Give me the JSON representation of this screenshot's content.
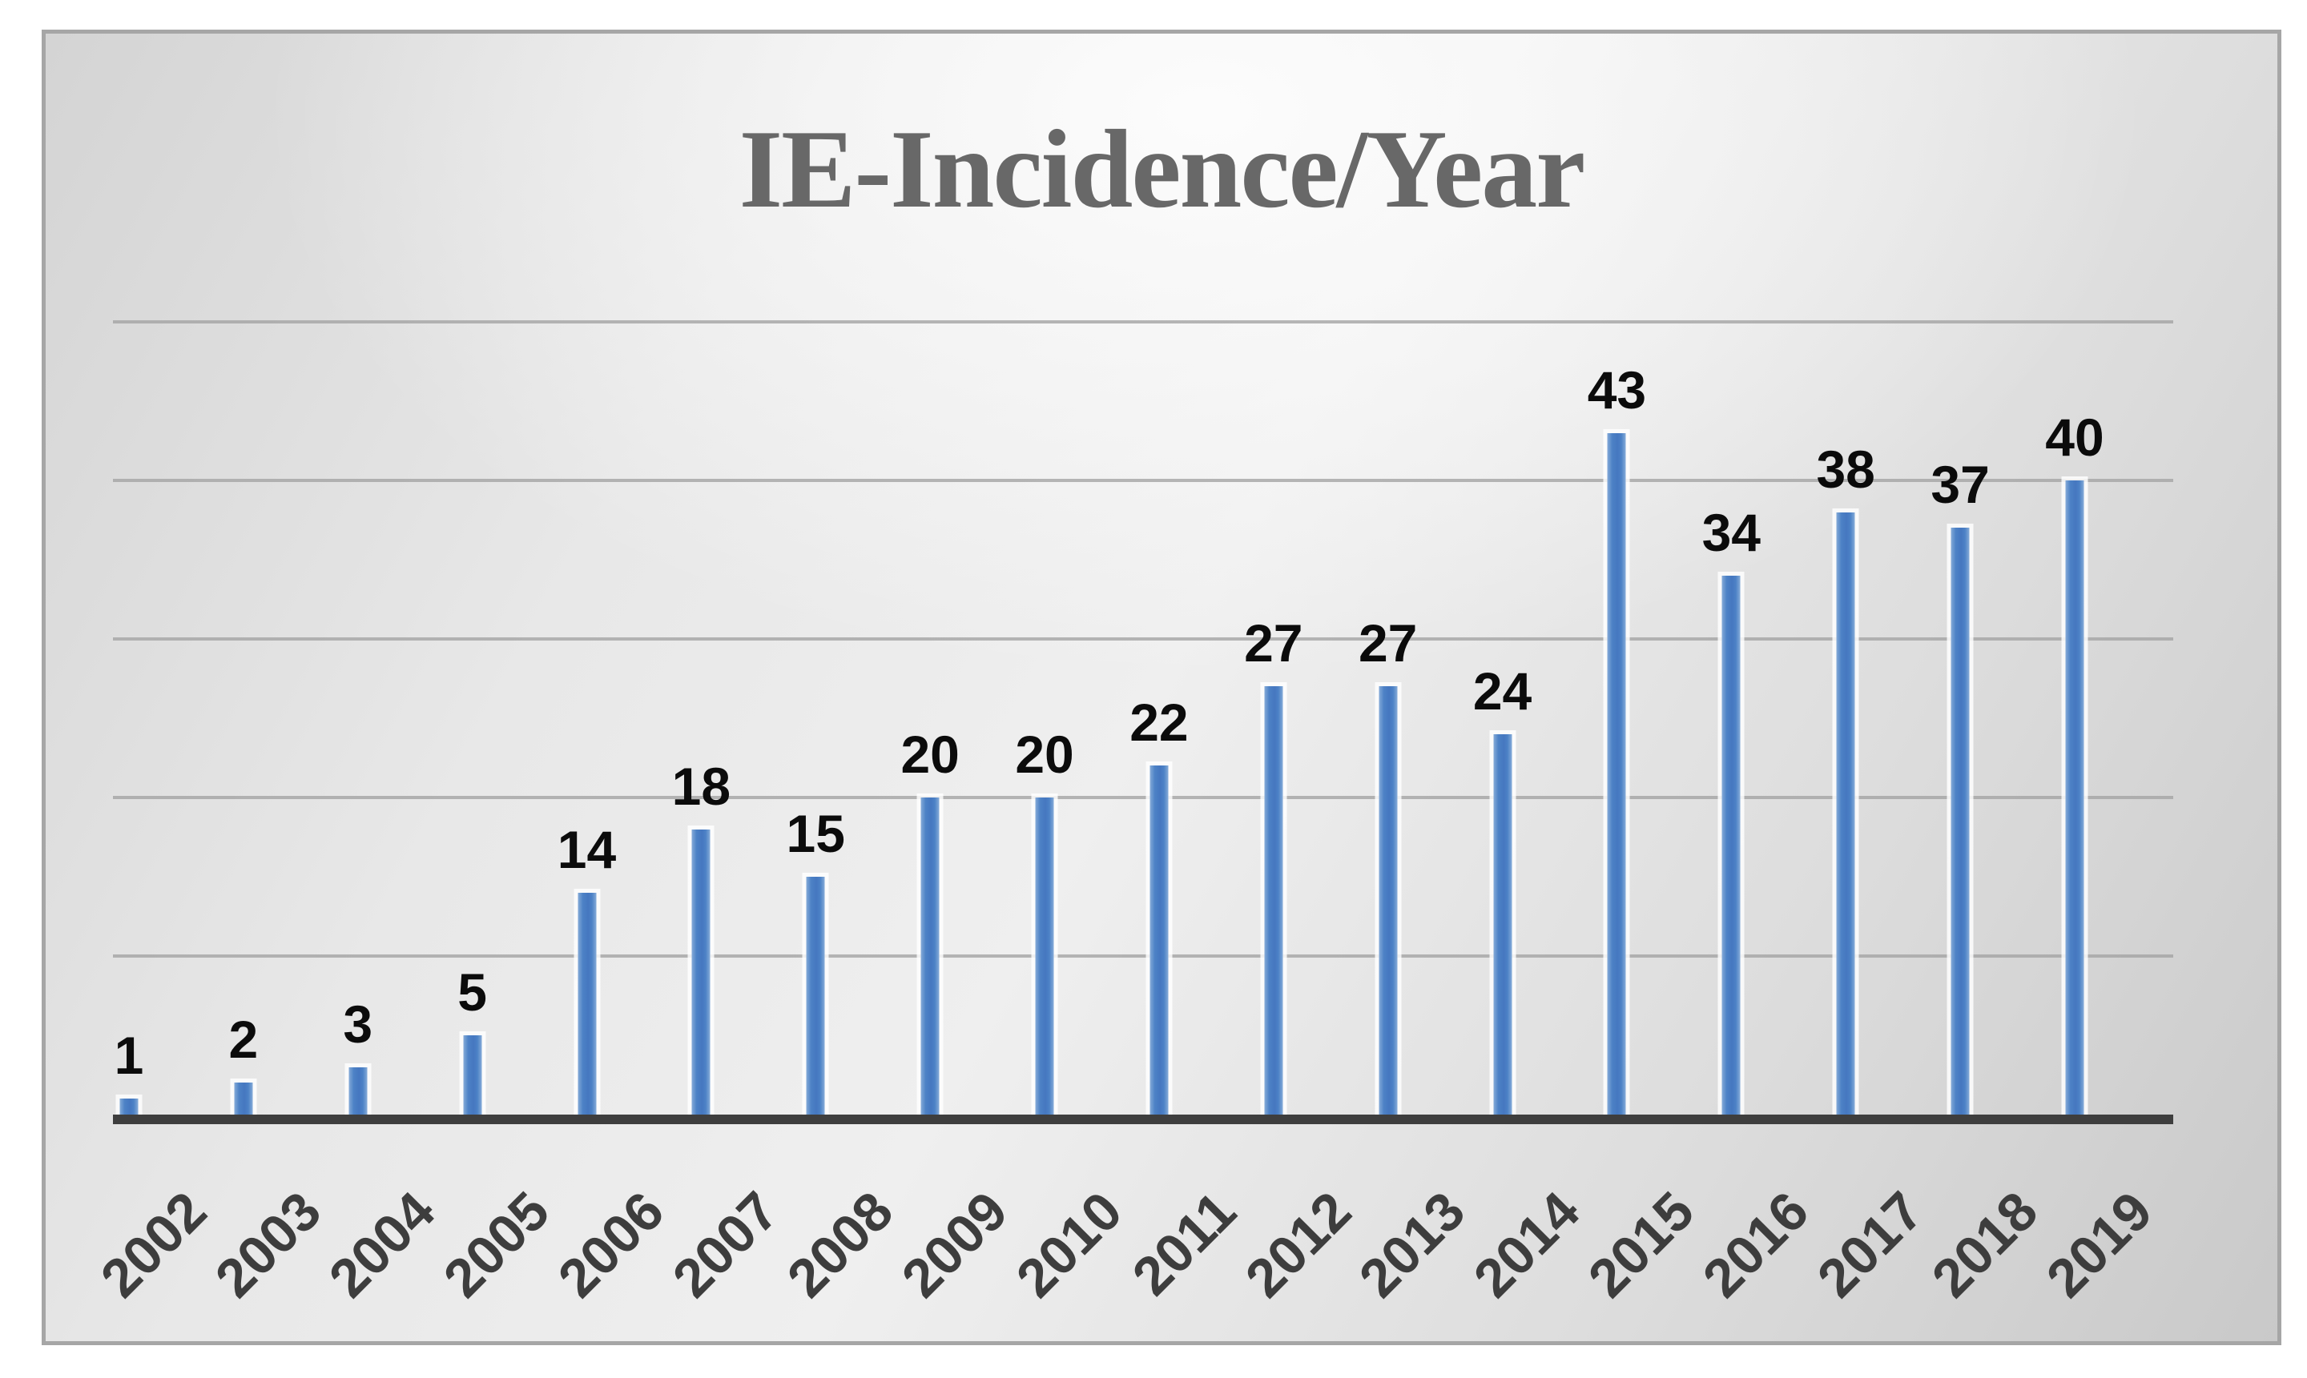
{
  "chart_data": {
    "type": "bar",
    "title": "IE-Incidence/Year",
    "categories": [
      "2002",
      "2003",
      "2004",
      "2005",
      "2006",
      "2007",
      "2008",
      "2009",
      "2010",
      "2011",
      "2012",
      "2013",
      "2014",
      "2015",
      "2016",
      "2017",
      "2018",
      "2019"
    ],
    "values": [
      1,
      2,
      3,
      5,
      14,
      18,
      15,
      20,
      20,
      22,
      27,
      27,
      24,
      43,
      34,
      38,
      37,
      40
    ],
    "xlabel": "",
    "ylabel": "",
    "ylim": [
      0,
      50
    ],
    "gridline_interval": 10,
    "y_axis_tick_labels_visible": false,
    "gridlines_visible": true,
    "legend": "none",
    "data_labels_position": "above bars",
    "x_tick_rotation_deg": 45,
    "colors": {
      "bar_fill": "#4a80c5",
      "bar_edge_highlight": "#85abd8",
      "bar_outline": "#ffffff",
      "gridline": "#a4a4a4",
      "axis_line": "#3e3e3e",
      "title_text": "#686868",
      "data_label_text": "#0b0b0b",
      "tick_label_text": "#3d3d3d",
      "frame_border": "#a6a6a6",
      "background_light": "#fdfdfd",
      "background_dark": "#c9c9c9"
    }
  }
}
